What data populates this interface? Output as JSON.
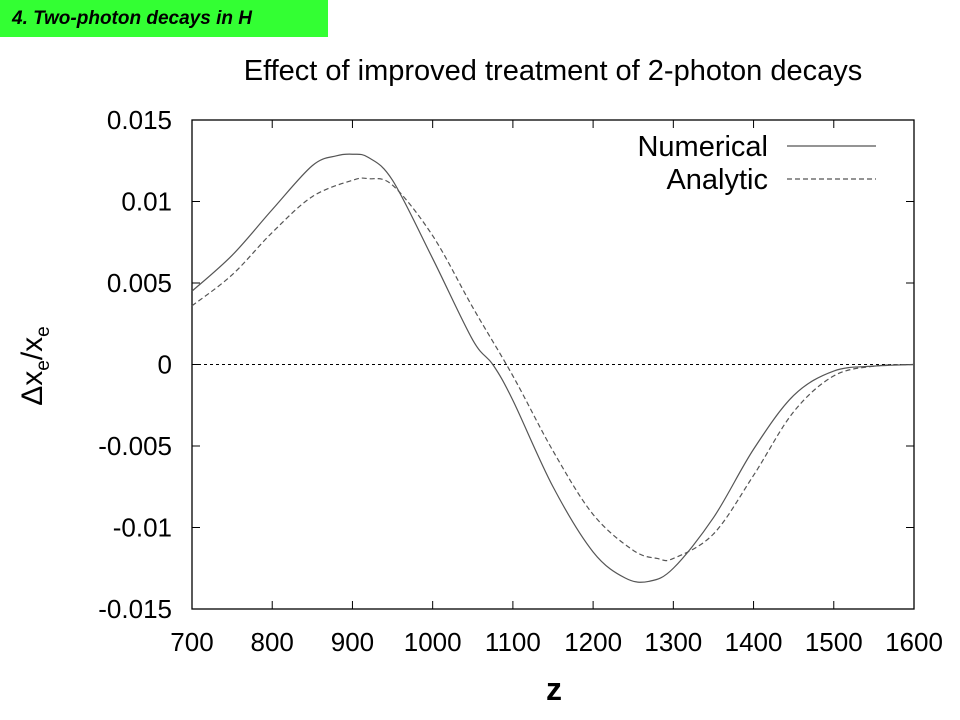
{
  "slide": {
    "badge": "4. Two-photon decays in H"
  },
  "chart_data": {
    "type": "line",
    "title": "Effect of improved treatment of 2-photon decays",
    "xlabel": "z",
    "ylabel_main": "Δx",
    "ylabel_sub": "e",
    "ylabel_slash": "/x",
    "xlim": [
      700,
      1600
    ],
    "ylim": [
      -0.015,
      0.015
    ],
    "xticks": [
      700,
      800,
      900,
      1000,
      1100,
      1200,
      1300,
      1400,
      1500,
      1600
    ],
    "yticks": [
      0.015,
      0.01,
      0.005,
      0,
      -0.005,
      -0.01,
      -0.015
    ],
    "ytick_labels": [
      "0.015",
      "0.01",
      "0.005",
      "0",
      "-0.005",
      "-0.01",
      "-0.015"
    ],
    "grid": false,
    "legend_position": "top-right",
    "zero_line": true,
    "series": [
      {
        "name": "Numerical",
        "style": "solid",
        "color": "#555555",
        "x": [
          700,
          750,
          800,
          850,
          880,
          900,
          920,
          950,
          1000,
          1050,
          1075,
          1100,
          1150,
          1200,
          1240,
          1270,
          1300,
          1350,
          1400,
          1450,
          1500,
          1550,
          1600
        ],
        "y": [
          0.0045,
          0.0067,
          0.0095,
          0.0122,
          0.0128,
          0.0129,
          0.0127,
          0.0113,
          0.0065,
          0.0015,
          0.0,
          -0.0022,
          -0.0075,
          -0.0115,
          -0.0131,
          -0.0133,
          -0.0125,
          -0.0094,
          -0.0052,
          -0.0019,
          -0.0004,
          -0.0001,
          0.0
        ]
      },
      {
        "name": "Analytic",
        "style": "dashed",
        "color": "#555555",
        "x": [
          700,
          750,
          800,
          850,
          900,
          920,
          950,
          1000,
          1050,
          1100,
          1150,
          1200,
          1250,
          1280,
          1300,
          1350,
          1400,
          1450,
          1500,
          1550,
          1600
        ],
        "y": [
          0.0036,
          0.0055,
          0.0081,
          0.0103,
          0.0113,
          0.0114,
          0.011,
          0.0079,
          0.0035,
          -0.0007,
          -0.0053,
          -0.0092,
          -0.0114,
          -0.0119,
          -0.0119,
          -0.0104,
          -0.0068,
          -0.0029,
          -0.0007,
          -0.0001,
          0.0
        ]
      }
    ]
  }
}
